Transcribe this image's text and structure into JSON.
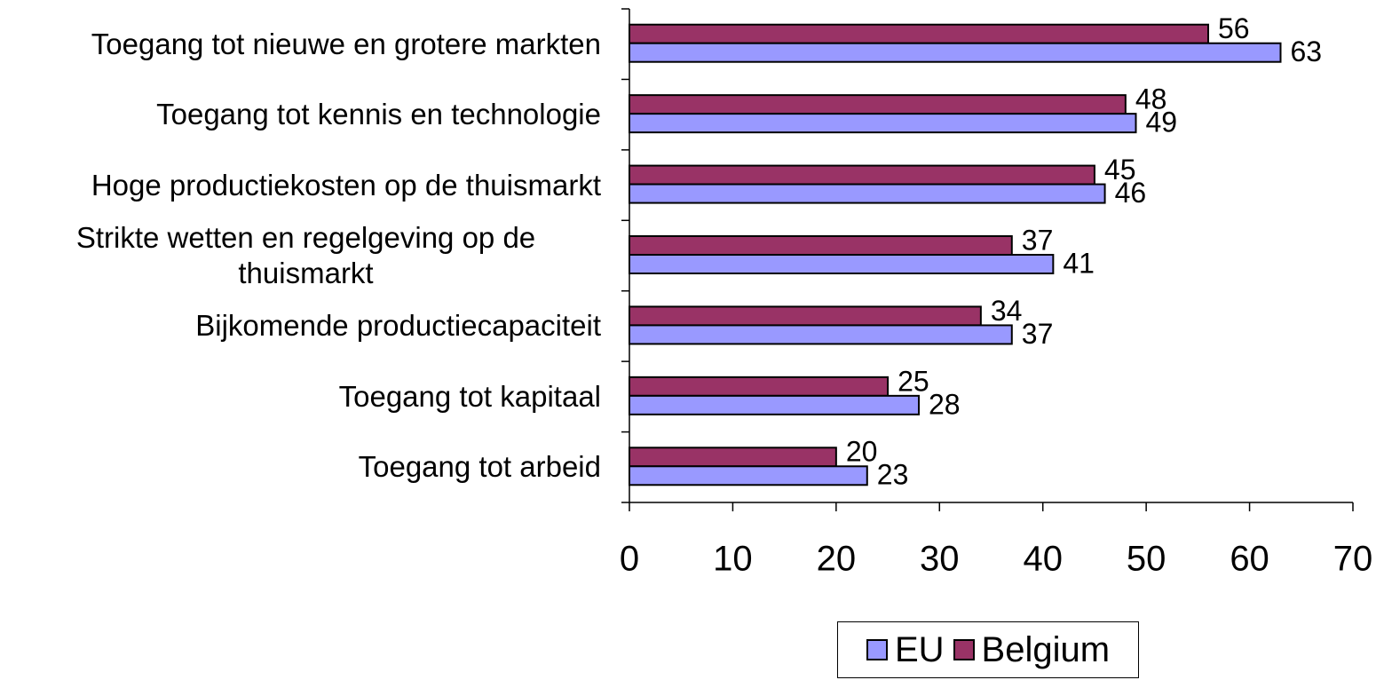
{
  "chart_data": {
    "type": "barh",
    "categories": [
      "Toegang tot nieuwe en grotere markten",
      "Toegang tot kennis en technologie",
      "Hoge productiekosten op de thuismarkt",
      "Strikte wetten en regelgeving op de thuismarkt",
      "Bijkomende productiecapaciteit",
      "Toegang tot kapitaal",
      "Toegang tot arbeid"
    ],
    "series": [
      {
        "name": "EU",
        "color": "#9999ff",
        "values": [
          63,
          49,
          46,
          41,
          37,
          28,
          23
        ]
      },
      {
        "name": "Belgium",
        "color": "#993366",
        "values": [
          56,
          48,
          45,
          37,
          34,
          25,
          20
        ]
      }
    ],
    "xlim": [
      0,
      70
    ],
    "xticks": [
      0,
      10,
      20,
      30,
      40,
      50,
      60,
      70
    ]
  }
}
